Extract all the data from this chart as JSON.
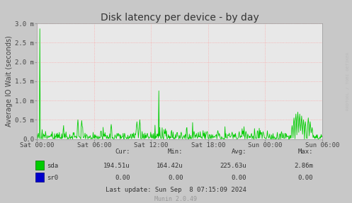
{
  "title": "Disk latency per device - by day",
  "ylabel": "Average IO Wait (seconds)",
  "background_color": "#c8c8c8",
  "plot_bg_color": "#e8e8e8",
  "grid_color": "#ff9999",
  "line_color_sda": "#00cc00",
  "line_color_sr0": "#0000cc",
  "ylim": [
    0.0,
    3.0
  ],
  "ytick_labels": [
    "0.0",
    "0.5 m",
    "1.0 m",
    "1.5 m",
    "2.0 m",
    "2.5 m",
    "3.0 m"
  ],
  "xtick_labels": [
    "Sat 00:00",
    "Sat 06:00",
    "Sat 12:00",
    "Sat 18:00",
    "Sun 00:00",
    "Sun 06:00"
  ],
  "footer_text": "Last update: Sun Sep  8 07:15:09 2024",
  "munin_text": "Munin 2.0.49",
  "watermark": "RRDTOOL / TOBI OETIKER",
  "cur_sda": "194.51u",
  "min_sda": "164.42u",
  "avg_sda": "225.63u",
  "max_sda": "2.86m",
  "cur_sr0": "0.00",
  "min_sr0": "0.00",
  "avg_sr0": "0.00",
  "max_sr0": "0.00",
  "title_fontsize": 10,
  "axis_fontsize": 7,
  "tick_fontsize": 6.5,
  "footer_fontsize": 6.5
}
